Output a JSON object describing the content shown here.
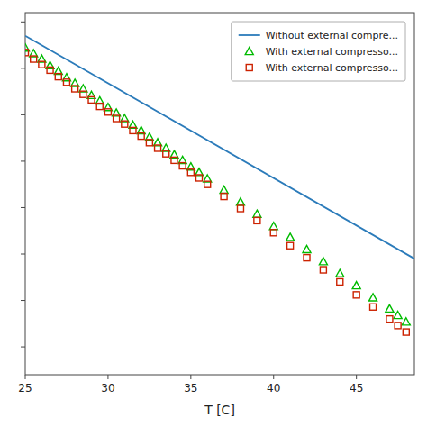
{
  "chart_data": {
    "type": "line",
    "xlabel": "T  [C]",
    "xlim": [
      25,
      48.5
    ],
    "ylim": [
      0.62,
      1.01
    ],
    "xticks": [
      25,
      30,
      35,
      40,
      45
    ],
    "yticks": [
      0.65,
      0.7,
      0.75,
      0.8,
      0.85,
      0.9,
      0.95,
      1.0
    ],
    "tick_labels": "x",
    "grid": false,
    "legend": "upper right",
    "series": [
      {
        "name": "Without external compre...",
        "type": "line",
        "color": "#2b7bba",
        "x": [
          25,
          48.5
        ],
        "values": [
          0.985,
          0.745
        ]
      },
      {
        "name": "With external compresso...",
        "type": "scatter",
        "marker": "triangle",
        "color": "#00bb00",
        "x": [
          25,
          25.5,
          26,
          26.5,
          27,
          27.5,
          28,
          28.5,
          29,
          29.5,
          30,
          30.5,
          31,
          31.5,
          32,
          32.5,
          33,
          33.5,
          34,
          34.5,
          35,
          35.5,
          36,
          37,
          38,
          39,
          40,
          41,
          42,
          43,
          44,
          45,
          46,
          47,
          47.5,
          48
        ],
        "values": [
          0.972,
          0.966,
          0.96,
          0.953,
          0.947,
          0.94,
          0.934,
          0.928,
          0.921,
          0.915,
          0.908,
          0.902,
          0.896,
          0.889,
          0.883,
          0.876,
          0.87,
          0.864,
          0.857,
          0.851,
          0.844,
          0.838,
          0.831,
          0.819,
          0.806,
          0.793,
          0.78,
          0.768,
          0.755,
          0.742,
          0.729,
          0.716,
          0.703,
          0.691,
          0.684,
          0.677
        ]
      },
      {
        "name": "With external compresso...",
        "type": "scatter",
        "marker": "square",
        "color": "#cc2200",
        "x": [
          25,
          25.5,
          26,
          26.5,
          27,
          27.5,
          28,
          28.5,
          29,
          29.5,
          30,
          30.5,
          31,
          31.5,
          32,
          32.5,
          33,
          33.5,
          34,
          34.5,
          35,
          35.5,
          36,
          37,
          38,
          39,
          40,
          41,
          42,
          43,
          44,
          45,
          46,
          47,
          47.5,
          48
        ],
        "values": [
          0.967,
          0.96,
          0.954,
          0.948,
          0.941,
          0.935,
          0.928,
          0.922,
          0.916,
          0.909,
          0.903,
          0.896,
          0.89,
          0.883,
          0.877,
          0.87,
          0.864,
          0.858,
          0.851,
          0.845,
          0.838,
          0.832,
          0.825,
          0.812,
          0.799,
          0.786,
          0.773,
          0.759,
          0.746,
          0.733,
          0.72,
          0.706,
          0.693,
          0.68,
          0.673,
          0.666
        ]
      }
    ]
  }
}
